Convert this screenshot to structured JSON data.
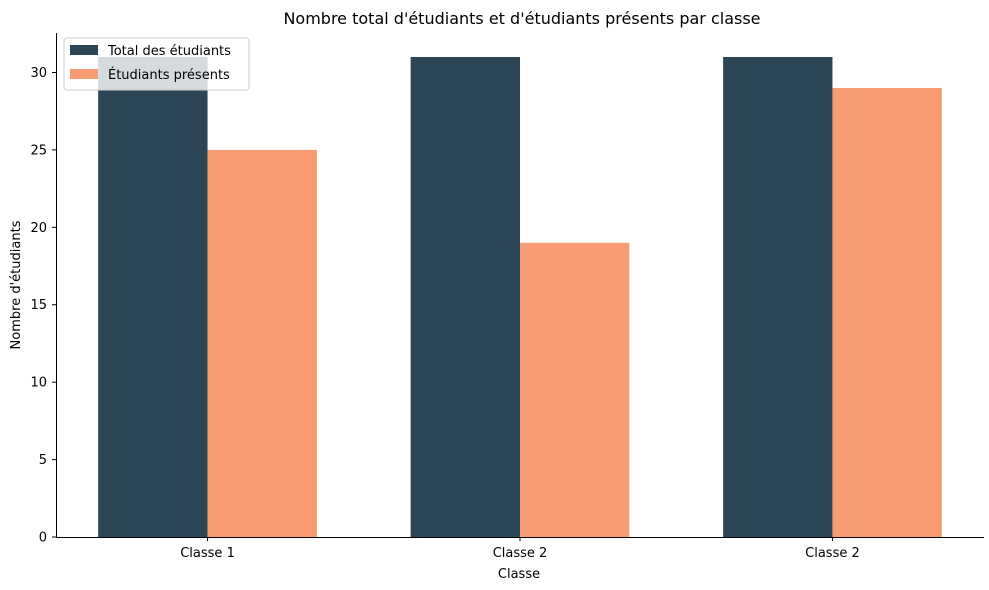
{
  "chart_data": {
    "type": "bar",
    "title": "Nombre total d'étudiants et d'étudiants présents par classe",
    "xlabel": "Classe",
    "ylabel": "Nombre d'étudiants",
    "categories": [
      "Classe 1",
      "Classe 2",
      "Classe 2"
    ],
    "series": [
      {
        "name": "Total des étudiants",
        "values": [
          31,
          31,
          31
        ],
        "color": "#2c4658"
      },
      {
        "name": "Étudiants présents",
        "values": [
          25,
          19,
          29
        ],
        "color": "#f79b72"
      }
    ],
    "ylim": [
      0,
      32.55
    ],
    "yticks": [
      0,
      5,
      10,
      15,
      20,
      25,
      30
    ],
    "grid": false,
    "legend_position": "top-left"
  }
}
